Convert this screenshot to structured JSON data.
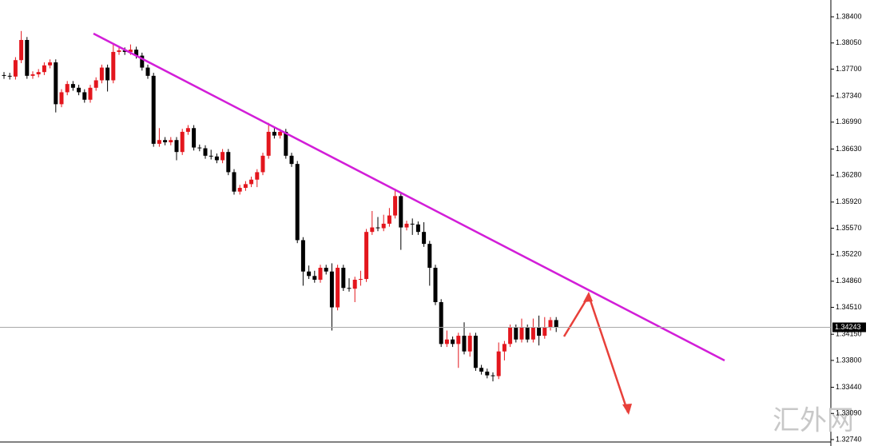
{
  "chart_data": {
    "type": "candlestick",
    "up_color": "#e3161d",
    "down_color": "#000000",
    "open": [
      1.3762,
      1.3761,
      1.376,
      1.3782,
      1.3809,
      1.3761,
      1.3763,
      1.3766,
      1.3775,
      1.3779,
      1.3723,
      1.3739,
      1.375,
      1.3745,
      1.3739,
      1.3729,
      1.3745,
      1.3755,
      1.3772,
      1.3755,
      1.3793,
      1.3795,
      1.3793,
      1.3796,
      1.3788,
      1.3772,
      1.3761,
      1.367,
      1.3675,
      1.3672,
      1.3675,
      1.3659,
      1.3686,
      1.3691,
      1.3665,
      1.3664,
      1.3654,
      1.3653,
      1.3648,
      1.3659,
      1.3632,
      1.3606,
      1.3611,
      1.3616,
      1.3622,
      1.3632,
      1.3654,
      1.3686,
      1.3681,
      1.3686,
      1.3654,
      1.3643,
      1.3541,
      1.3499,
      1.3493,
      1.3488,
      1.3504,
      1.3499,
      1.3451,
      1.3504,
      1.3477,
      1.3476,
      1.3488,
      1.3489,
      1.3552,
      1.3558,
      1.3557,
      1.3563,
      1.3574,
      1.36,
      1.3558,
      1.3563,
      1.3562,
      1.3552,
      1.3536,
      1.3504,
      1.3458,
      1.3402,
      1.3408,
      1.3402,
      1.3413,
      1.3392,
      1.3413,
      1.337,
      1.3365,
      1.336,
      1.3359,
      1.3392,
      1.3402,
      1.3424,
      1.3408,
      1.3424,
      1.3408,
      1.3424,
      1.3413,
      1.3424,
      1.3434
    ],
    "high": [
      1.3766,
      1.3765,
      1.3786,
      1.3821,
      1.3813,
      1.3767,
      1.377,
      1.3779,
      1.3783,
      1.3783,
      1.3743,
      1.3754,
      1.3754,
      1.3749,
      1.3743,
      1.3749,
      1.3759,
      1.3776,
      1.3776,
      1.3805,
      1.3799,
      1.3799,
      1.3803,
      1.38,
      1.3792,
      1.3776,
      1.3765,
      1.3691,
      1.3679,
      1.3679,
      1.3679,
      1.369,
      1.3695,
      1.3695,
      1.3669,
      1.3668,
      1.3662,
      1.3657,
      1.3663,
      1.3663,
      1.3636,
      1.3615,
      1.362,
      1.3626,
      1.3636,
      1.3658,
      1.3698,
      1.3693,
      1.369,
      1.369,
      1.3658,
      1.3647,
      1.3545,
      1.3507,
      1.35,
      1.3508,
      1.3508,
      1.351,
      1.3508,
      1.3508,
      1.349,
      1.3492,
      1.35,
      1.3556,
      1.358,
      1.3572,
      1.3575,
      1.3584,
      1.361,
      1.3604,
      1.3567,
      1.357,
      1.3566,
      1.3565,
      1.354,
      1.3508,
      1.3462,
      1.342,
      1.3412,
      1.3417,
      1.3431,
      1.3417,
      1.3417,
      1.3374,
      1.3369,
      1.3364,
      1.3404,
      1.3406,
      1.3428,
      1.3428,
      1.3436,
      1.3428,
      1.3436,
      1.344,
      1.3438,
      1.3438,
      1.3438
    ],
    "low": [
      1.3757,
      1.3756,
      1.3756,
      1.3778,
      1.3757,
      1.3757,
      1.3759,
      1.3762,
      1.3771,
      1.3712,
      1.3719,
      1.3735,
      1.3741,
      1.3735,
      1.3725,
      1.3725,
      1.3741,
      1.3751,
      1.374,
      1.3751,
      1.3789,
      1.3789,
      1.3789,
      1.3784,
      1.3768,
      1.3757,
      1.3666,
      1.3666,
      1.3668,
      1.3668,
      1.3648,
      1.3655,
      1.3682,
      1.3661,
      1.366,
      1.365,
      1.3649,
      1.3644,
      1.3644,
      1.3628,
      1.3602,
      1.3602,
      1.3607,
      1.3612,
      1.3612,
      1.3628,
      1.365,
      1.3677,
      1.3677,
      1.365,
      1.3639,
      1.3537,
      1.348,
      1.3489,
      1.3484,
      1.3484,
      1.3495,
      1.342,
      1.3447,
      1.3473,
      1.3472,
      1.3458,
      1.348,
      1.3485,
      1.3548,
      1.3553,
      1.3553,
      1.3559,
      1.357,
      1.3528,
      1.3554,
      1.3548,
      1.3548,
      1.3532,
      1.348,
      1.3454,
      1.3398,
      1.3398,
      1.3398,
      1.337,
      1.3388,
      1.3385,
      1.3366,
      1.3361,
      1.3356,
      1.3352,
      1.3355,
      1.338,
      1.3398,
      1.3404,
      1.3404,
      1.3404,
      1.3404,
      1.34,
      1.3409,
      1.342,
      1.3418
    ],
    "close": [
      1.3761,
      1.376,
      1.3782,
      1.3809,
      1.3761,
      1.3763,
      1.3766,
      1.3775,
      1.3779,
      1.3723,
      1.3739,
      1.375,
      1.3745,
      1.3739,
      1.3729,
      1.3745,
      1.3755,
      1.3772,
      1.3755,
      1.3793,
      1.3795,
      1.3793,
      1.3796,
      1.3788,
      1.3772,
      1.3761,
      1.367,
      1.3675,
      1.3672,
      1.3675,
      1.3659,
      1.3686,
      1.3691,
      1.3665,
      1.3664,
      1.3654,
      1.3653,
      1.3648,
      1.3659,
      1.3632,
      1.3606,
      1.3611,
      1.3616,
      1.3622,
      1.3632,
      1.3654,
      1.3686,
      1.3681,
      1.3686,
      1.3654,
      1.3643,
      1.3541,
      1.3499,
      1.3493,
      1.3488,
      1.3504,
      1.3499,
      1.3451,
      1.3504,
      1.3477,
      1.3476,
      1.3488,
      1.3489,
      1.3552,
      1.3558,
      1.3557,
      1.3563,
      1.3574,
      1.36,
      1.3558,
      1.3563,
      1.3562,
      1.3552,
      1.3536,
      1.3504,
      1.3458,
      1.3402,
      1.3408,
      1.3402,
      1.3413,
      1.3392,
      1.3413,
      1.337,
      1.3365,
      1.336,
      1.3359,
      1.3392,
      1.3402,
      1.3424,
      1.3408,
      1.3424,
      1.3408,
      1.3424,
      1.3413,
      1.3424,
      1.3434,
      1.3424
    ],
    "ylim": [
      1.32654,
      1.38625
    ],
    "yticks": [
      {
        "value": 1.384,
        "label": "1.38400"
      },
      {
        "value": 1.3805,
        "label": "1.38050"
      },
      {
        "value": 1.377,
        "label": "1.37700"
      },
      {
        "value": 1.3734,
        "label": "1.37340"
      },
      {
        "value": 1.3699,
        "label": "1.36990"
      },
      {
        "value": 1.3663,
        "label": "1.36630"
      },
      {
        "value": 1.3628,
        "label": "1.36280"
      },
      {
        "value": 1.3592,
        "label": "1.35920"
      },
      {
        "value": 1.3557,
        "label": "1.35570"
      },
      {
        "value": 1.3522,
        "label": "1.35220"
      },
      {
        "value": 1.3486,
        "label": "1.34860"
      },
      {
        "value": 1.3451,
        "label": "1.34510"
      },
      {
        "value": 1.3415,
        "label": "1.34150"
      },
      {
        "value": 1.338,
        "label": "1.33800"
      },
      {
        "value": 1.3344,
        "label": "1.33440"
      },
      {
        "value": 1.3309,
        "label": "1.33090"
      },
      {
        "value": 1.3274,
        "label": "1.32740"
      }
    ],
    "last_price": 1.34243,
    "watermark": "汇外网"
  }
}
